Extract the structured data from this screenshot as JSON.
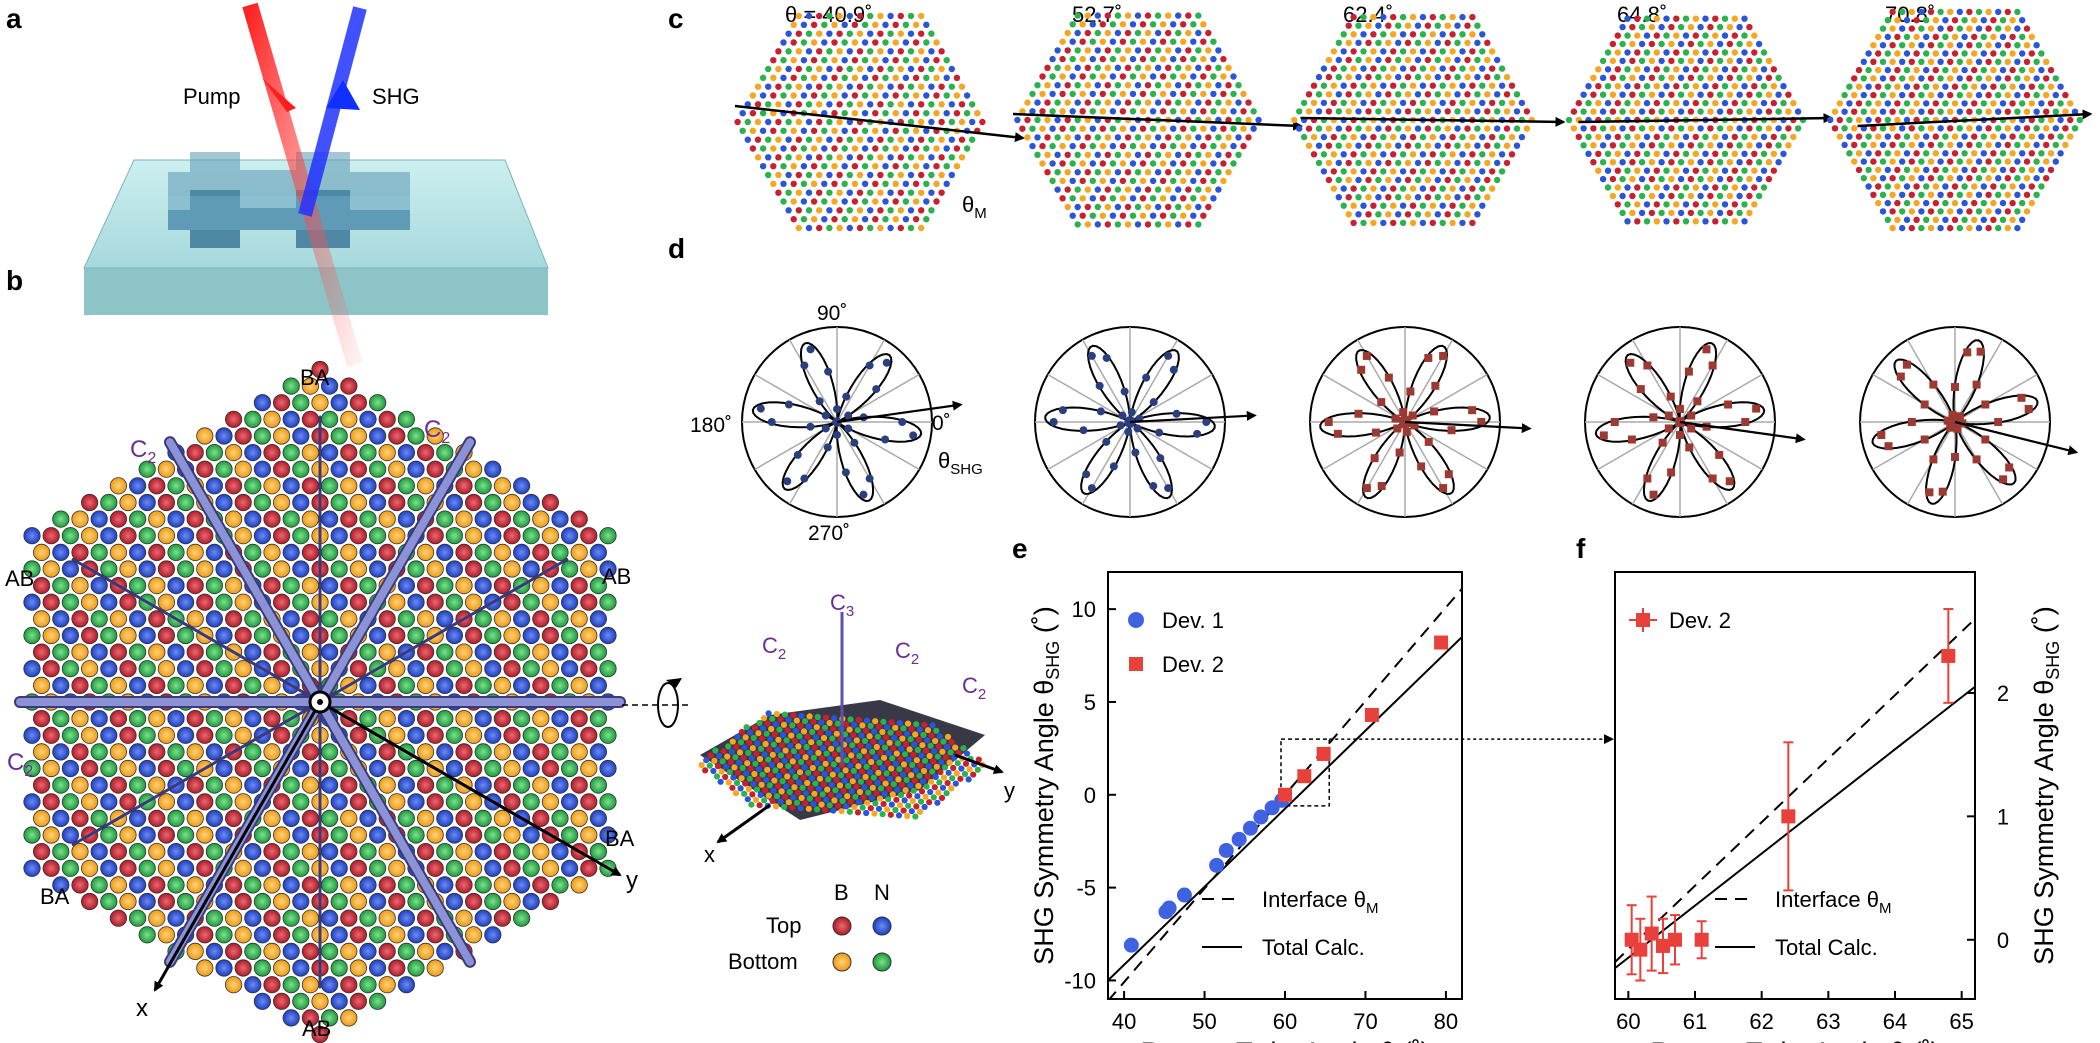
{
  "panel_labels": [
    "a",
    "b",
    "c",
    "d",
    "e",
    "f"
  ],
  "panel_a": {
    "pump_label": "Pump",
    "shg_label": "SHG"
  },
  "panel_b": {
    "corner_labels": [
      "BA",
      "AB",
      "AB",
      "BA",
      "BA",
      "AB"
    ],
    "c2": "C",
    "c2_sub": "2",
    "c3": "C",
    "c3_sub": "3",
    "axis_x": "x",
    "axis_y": "y",
    "legend": {
      "col_b": "B",
      "col_n": "N",
      "row_top": "Top",
      "row_bottom": "Bottom"
    }
  },
  "colors": {
    "b_top": "#c8202e",
    "n_top": "#2a55d8",
    "b_bottom": "#f5a623",
    "n_bottom": "#2bb24c",
    "dev1": "#3f63e0",
    "dev2": "#e8413b",
    "polar_blue": "#2b3f7e",
    "polar_red": "#9b3a33",
    "rod": "#8b92d6",
    "c2_text": "#6a2d91"
  },
  "panel_c": {
    "angles": [
      "θ = 40.9˚",
      "52.7˚",
      "62.4˚",
      "64.8˚",
      "70.8˚"
    ],
    "theta_m": "θ",
    "theta_m_sub": "M"
  },
  "panel_d": {
    "angle_90": "90˚",
    "angle_180": "180˚",
    "angle_0": "0˚",
    "angle_270": "270˚",
    "theta_shg": "θ",
    "theta_shg_sub": "SHG"
  },
  "chart_data": [
    {
      "type": "scatter",
      "panel": "e",
      "xlabel": "Rotator Twist Angle θ (˚)",
      "ylabel": "SHG Symmetry Angle θ",
      "ylabel_sub": "SHG",
      "ylabel_unit": " (˚)",
      "xlim": [
        38,
        82
      ],
      "ylim": [
        -11,
        12
      ],
      "xticks": [
        40,
        50,
        60,
        70,
        80
      ],
      "yticks": [
        -10,
        -5,
        0,
        5,
        10
      ],
      "series": [
        {
          "name": "Dev. 1",
          "marker": "circle",
          "x": [
            40.9,
            45.2,
            45.6,
            47.5,
            51.5,
            52.7,
            54.3,
            55.7,
            57.0,
            58.4,
            59.6
          ],
          "y": [
            -8.1,
            -6.3,
            -6.1,
            -5.4,
            -3.8,
            -3.0,
            -2.4,
            -1.8,
            -1.2,
            -0.7,
            -0.3
          ]
        },
        {
          "name": "Dev. 2",
          "marker": "square",
          "x": [
            60.0,
            62.4,
            64.8,
            70.8,
            79.4
          ],
          "y": [
            0.0,
            1.0,
            2.2,
            4.3,
            8.2
          ]
        }
      ],
      "lines": [
        {
          "name": "Interface θ",
          "sub": "M",
          "style": "dashed",
          "x": [
            38,
            82
          ],
          "y": [
            -11.1,
            11.1
          ]
        },
        {
          "name": "Total Calc.",
          "style": "solid",
          "x": [
            38,
            82
          ],
          "y": [
            -10.0,
            8.5
          ]
        }
      ],
      "zoom_box": {
        "x": [
          59.5,
          65.5
        ],
        "y": [
          -0.6,
          3.0
        ]
      }
    },
    {
      "type": "scatter",
      "panel": "f",
      "xlabel": "Rotator Twist Angle θ (˚)",
      "ylabel": "SHG Symmetry Angle θ",
      "ylabel_sub": "SHG",
      "ylabel_unit": " (˚)",
      "xlim": [
        59.8,
        65.2
      ],
      "ylim": [
        -0.48,
        2.98
      ],
      "xticks": [
        60,
        61,
        62,
        63,
        64,
        65
      ],
      "yticks": [
        0,
        1,
        2
      ],
      "series": [
        {
          "name": "Dev. 2",
          "marker": "square",
          "x": [
            60.05,
            60.18,
            60.35,
            60.52,
            60.7,
            61.1,
            62.4,
            64.8
          ],
          "y": [
            0.0,
            -0.08,
            0.05,
            -0.05,
            0.0,
            0.0,
            1.0,
            2.3
          ],
          "yerr": [
            0.28,
            0.25,
            0.3,
            0.22,
            0.2,
            0.15,
            0.6,
            0.38
          ],
          "xerr": [
            0.1,
            0.1,
            0.08,
            0.1,
            0.1,
            0.1,
            0.05,
            0.08
          ]
        }
      ],
      "lines": [
        {
          "name": "Interface θ",
          "sub": "M",
          "style": "dashed",
          "x": [
            59.8,
            65.2
          ],
          "y": [
            -0.18,
            2.6
          ]
        },
        {
          "name": "Total Calc.",
          "style": "solid",
          "x": [
            59.8,
            65.2
          ],
          "y": [
            -0.23,
            2.05
          ]
        }
      ]
    }
  ]
}
